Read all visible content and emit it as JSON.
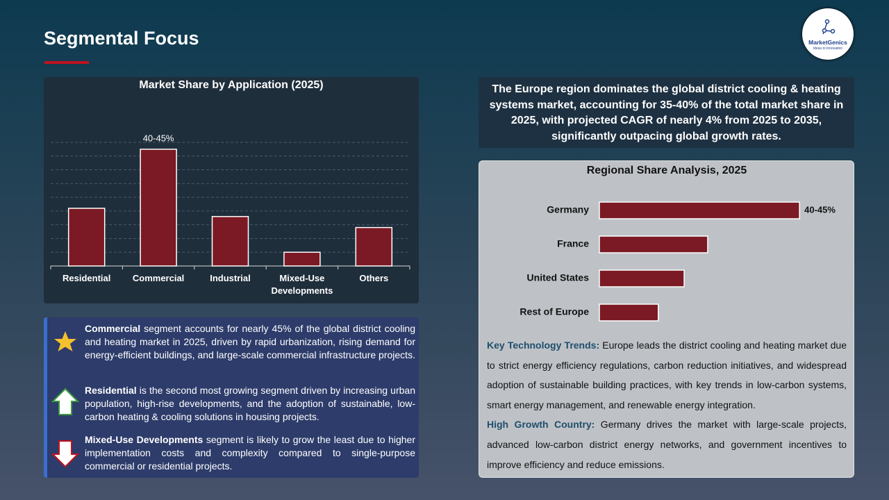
{
  "header": {
    "title": "Segmental Focus"
  },
  "logo": {
    "name": "MarketGenics",
    "tagline": "Ideas to Innovation"
  },
  "chart_data": [
    {
      "type": "bar",
      "title": "Market Share by Application (2025)",
      "categories": [
        "Residential",
        "Commercial",
        "Industrial",
        "Mixed-Use Developments",
        "Others"
      ],
      "values": [
        21,
        42.5,
        18,
        5,
        14
      ],
      "value_labels": [
        null,
        "40-45%",
        null,
        null,
        null
      ],
      "color": "#7b1a24",
      "ylim": [
        0,
        45
      ],
      "yticks": [
        0,
        5,
        10,
        15,
        20,
        25,
        30,
        35,
        40,
        45
      ],
      "grid": true
    },
    {
      "type": "barh",
      "title": "Regional Share Analysis, 2025",
      "categories": [
        "Germany",
        "France",
        "United States",
        "Rest of Europe"
      ],
      "values": [
        42.5,
        23,
        18,
        12.5
      ],
      "value_labels": [
        "40-45%",
        null,
        null,
        null
      ],
      "color": "#7b1a24",
      "xlim": [
        0,
        50
      ],
      "grid": false
    }
  ],
  "summary": "The Europe region dominates the global district cooling & heating systems market, accounting for 35-40% of the total market share in 2025, with projected CAGR of nearly 4% from 2025 to 2035, significantly outpacing global growth rates.",
  "insights": [
    {
      "lead": "Commercial",
      "text": " segment accounts for nearly 45% of the global district cooling and heating market in 2025, driven by rapid urbanization, rising demand for energy-efficient buildings, and large-scale commercial infrastructure projects."
    },
    {
      "lead": "Residential",
      "text": " is the second most growing segment driven by increasing urban population, high-rise developments, and the adoption of sustainable, low-carbon heating & cooling solutions in housing projects."
    },
    {
      "lead": "Mixed-Use Developments",
      "text": " segment is likely to grow the least due to higher implementation costs and complexity compared to single-purpose commercial or residential projects."
    }
  ],
  "notes": [
    {
      "lead": "Key Technology Trends:",
      "text": " Europe leads the district cooling and heating market due to strict energy efficiency regulations, carbon reduction initiatives, and widespread adoption of sustainable building practices, with key trends in low-carbon systems, smart energy management, and renewable energy integration."
    },
    {
      "lead": "High Growth Country:",
      "text": " Germany drives the market with large-scale projects, advanced low-carbon district energy networks, and government incentives to improve efficiency and reduce emissions."
    }
  ]
}
